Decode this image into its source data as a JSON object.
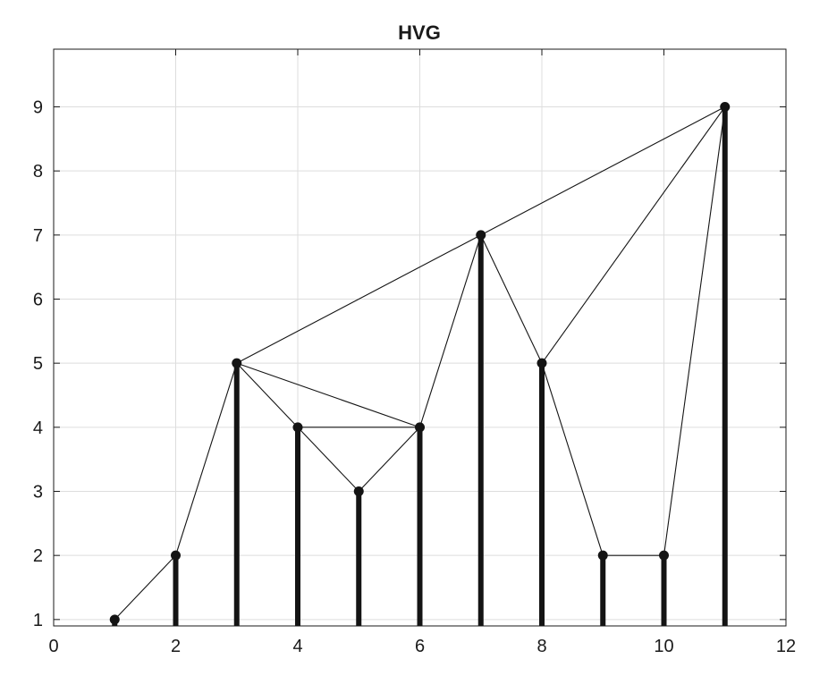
{
  "chart_data": {
    "type": "line",
    "title": "HVG",
    "xlabel": "",
    "ylabel": "",
    "xlim": [
      0,
      12
    ],
    "ylim": [
      0.9,
      9.9
    ],
    "x_ticks": [
      0,
      2,
      4,
      6,
      8,
      10,
      12
    ],
    "y_ticks": [
      1,
      2,
      3,
      4,
      5,
      6,
      7,
      8,
      9
    ],
    "grid": true,
    "x": [
      1,
      2,
      3,
      4,
      5,
      6,
      7,
      8,
      9,
      10,
      11
    ],
    "values": [
      1,
      2,
      5,
      4,
      3,
      4,
      7,
      5,
      2,
      2,
      9
    ],
    "edges": [
      [
        1,
        2
      ],
      [
        2,
        3
      ],
      [
        3,
        4
      ],
      [
        3,
        6
      ],
      [
        3,
        7
      ],
      [
        4,
        5
      ],
      [
        4,
        6
      ],
      [
        5,
        6
      ],
      [
        6,
        7
      ],
      [
        7,
        8
      ],
      [
        7,
        11
      ],
      [
        8,
        9
      ],
      [
        8,
        11
      ],
      [
        9,
        10
      ],
      [
        10,
        11
      ]
    ],
    "colors": {
      "mark": "#141414",
      "grid": "#dddddd",
      "axis": "#1a1a1a"
    }
  }
}
